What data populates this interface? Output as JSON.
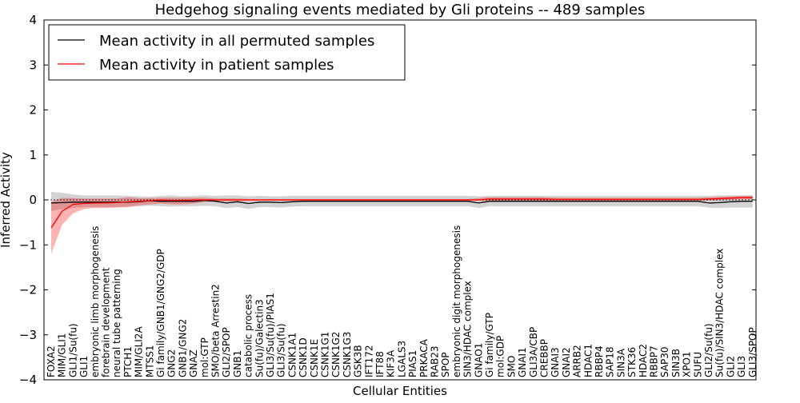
{
  "chart_data": {
    "type": "line",
    "title": "Hedgehog signaling events mediated by Gli proteins -- 489 samples",
    "xlabel": "Cellular Entities",
    "ylabel": "Inferred Activity",
    "ylim": [
      -4,
      4
    ],
    "yticks": [
      4,
      3,
      2,
      1,
      0,
      -1,
      -2,
      -3,
      -4
    ],
    "ytick_labels": [
      "4",
      "3",
      "2",
      "1",
      "0",
      "−1",
      "−2",
      "−3",
      "−4"
    ],
    "legend_position": "top-left",
    "categories": [
      "FOXA2",
      "MIM/GLI1",
      "GLI1/Su(fu)",
      "GLI1",
      "embryonic limb morphogenesis",
      "forebrain development",
      "neural tube patterning",
      "PTCH1",
      "MIM/GLI2A",
      "MTSS1",
      "Gi family/GNB1/GNG2/GDP",
      "GNG2",
      "GNB1/GNG2",
      "GNAZ",
      "mol:GTP",
      "SMO/beta Arrestin2",
      "GLI2/SPOP",
      "GNB1",
      "catabolic process",
      "Su(fu)/Galectin3",
      "GLI3/Su(fu)/PIAS1",
      "GLI3/Su(fu)",
      "CSNK1A1",
      "CSNK1D",
      "CSNK1E",
      "CSNK1G1",
      "CSNK1G2",
      "CSNK1G3",
      "GSK3B",
      "IFT172",
      "IFT88",
      "KIF3A",
      "LGALS3",
      "PIAS1",
      "PRKACA",
      "RAB23",
      "SPOP",
      "embryonic digit morphogenesis",
      "SIN3/HDAC complex",
      "GNAO1",
      "Gi family/GTP",
      "mol:GDP",
      "SMO",
      "GNAI1",
      "GLI3A/CBP",
      "CREBBP",
      "GNAI3",
      "GNAI2",
      "ARRB2",
      "HDAC1",
      "RBBP4",
      "SAP18",
      "SIN3A",
      "STK36",
      "HDAC2",
      "RBBP7",
      "SAP30",
      "SIN3B",
      "XPO1",
      "SUFU",
      "GLI2/Su(fu)",
      "Su(fu)/SIN3/HDAC complex",
      "GLI2",
      "GLI3",
      "GLI3/SPOP"
    ],
    "series": [
      {
        "name": "Mean activity in all permuted samples",
        "color": "#000000",
        "values": [
          -0.07,
          -0.06,
          -0.05,
          -0.05,
          -0.05,
          -0.05,
          -0.05,
          -0.05,
          -0.04,
          -0.02,
          -0.03,
          -0.03,
          -0.03,
          -0.03,
          -0.01,
          -0.03,
          -0.07,
          -0.04,
          -0.08,
          -0.05,
          -0.05,
          -0.06,
          -0.04,
          -0.03,
          -0.03,
          -0.03,
          -0.03,
          -0.03,
          -0.03,
          -0.03,
          -0.03,
          -0.03,
          -0.03,
          -0.03,
          -0.03,
          -0.03,
          -0.03,
          -0.03,
          -0.03,
          -0.07,
          -0.03,
          -0.03,
          -0.03,
          -0.03,
          -0.03,
          -0.03,
          -0.03,
          -0.03,
          -0.03,
          -0.03,
          -0.03,
          -0.03,
          -0.03,
          -0.03,
          -0.03,
          -0.03,
          -0.03,
          -0.03,
          -0.03,
          -0.03,
          -0.07,
          -0.06,
          -0.04,
          -0.03,
          -0.03
        ],
        "band": {
          "upper": [
            0.18,
            0.16,
            0.12,
            0.1,
            0.1,
            0.1,
            0.1,
            0.09,
            0.08,
            0.07,
            0.09,
            0.1,
            0.08,
            0.09,
            0.1,
            0.09,
            0.1,
            0.1,
            0.08,
            0.09,
            0.08,
            0.08,
            0.09,
            0.09,
            0.09,
            0.09,
            0.09,
            0.09,
            0.09,
            0.09,
            0.09,
            0.09,
            0.09,
            0.09,
            0.09,
            0.09,
            0.09,
            0.09,
            0.09,
            0.08,
            0.09,
            0.09,
            0.09,
            0.09,
            0.09,
            0.09,
            0.09,
            0.09,
            0.09,
            0.09,
            0.09,
            0.09,
            0.09,
            0.09,
            0.09,
            0.09,
            0.09,
            0.09,
            0.09,
            0.09,
            0.09,
            0.1,
            0.1,
            0.1,
            0.1
          ],
          "lower": [
            -0.25,
            -0.2,
            -0.18,
            -0.16,
            -0.16,
            -0.16,
            -0.16,
            -0.15,
            -0.14,
            -0.13,
            -0.14,
            -0.15,
            -0.14,
            -0.14,
            -0.13,
            -0.14,
            -0.18,
            -0.16,
            -0.2,
            -0.16,
            -0.16,
            -0.17,
            -0.15,
            -0.14,
            -0.14,
            -0.14,
            -0.14,
            -0.14,
            -0.14,
            -0.14,
            -0.14,
            -0.14,
            -0.14,
            -0.14,
            -0.14,
            -0.14,
            -0.14,
            -0.14,
            -0.14,
            -0.18,
            -0.14,
            -0.14,
            -0.14,
            -0.14,
            -0.14,
            -0.14,
            -0.14,
            -0.14,
            -0.14,
            -0.14,
            -0.14,
            -0.14,
            -0.14,
            -0.14,
            -0.14,
            -0.14,
            -0.14,
            -0.14,
            -0.14,
            -0.14,
            -0.17,
            -0.18,
            -0.17,
            -0.17,
            -0.17
          ]
        }
      },
      {
        "name": "Mean activity in patient samples",
        "color": "#ff0000",
        "values": [
          -0.62,
          -0.25,
          -0.1,
          -0.08,
          -0.07,
          -0.07,
          -0.06,
          -0.04,
          -0.03,
          -0.02,
          0.0,
          -0.01,
          -0.01,
          0.0,
          0.0,
          0.0,
          0.0,
          0.0,
          0.0,
          0.0,
          0.0,
          0.0,
          0.0,
          0.0,
          0.0,
          0.0,
          0.0,
          0.0,
          0.0,
          0.0,
          0.0,
          0.0,
          0.0,
          0.0,
          0.0,
          0.0,
          0.0,
          0.0,
          0.0,
          0.0,
          0.02,
          0.02,
          0.02,
          0.02,
          0.02,
          0.02,
          0.01,
          0.01,
          0.01,
          0.01,
          0.01,
          0.01,
          0.01,
          0.01,
          0.01,
          0.01,
          0.01,
          0.01,
          0.01,
          0.01,
          0.02,
          0.03,
          0.04,
          0.05,
          0.05
        ],
        "band": {
          "upper": [
            -0.05,
            0.05,
            0.04,
            0.03,
            0.03,
            0.03,
            0.03,
            0.06,
            0.04,
            0.04,
            0.05,
            0.05,
            0.05,
            0.05,
            0.05,
            0.03,
            0.03,
            0.03,
            0.02,
            0.02,
            0.02,
            0.02,
            0.02,
            0.02,
            0.02,
            0.02,
            0.02,
            0.02,
            0.02,
            0.02,
            0.02,
            0.02,
            0.02,
            0.02,
            0.02,
            0.02,
            0.02,
            0.02,
            0.02,
            0.04,
            0.06,
            0.06,
            0.06,
            0.06,
            0.06,
            0.06,
            0.05,
            0.05,
            0.05,
            0.05,
            0.05,
            0.05,
            0.05,
            0.05,
            0.05,
            0.05,
            0.05,
            0.05,
            0.05,
            0.05,
            0.06,
            0.07,
            0.08,
            0.09,
            0.09
          ],
          "lower": [
            -1.2,
            -0.55,
            -0.3,
            -0.2,
            -0.18,
            -0.18,
            -0.17,
            -0.16,
            -0.12,
            -0.1,
            -0.08,
            -0.1,
            -0.1,
            -0.08,
            -0.05,
            -0.03,
            -0.03,
            -0.03,
            -0.02,
            -0.02,
            -0.02,
            -0.02,
            -0.02,
            -0.02,
            -0.02,
            -0.02,
            -0.02,
            -0.02,
            -0.02,
            -0.02,
            -0.02,
            -0.02,
            -0.02,
            -0.02,
            -0.02,
            -0.02,
            -0.02,
            -0.02,
            -0.02,
            -0.02,
            -0.02,
            -0.02,
            -0.02,
            -0.02,
            -0.02,
            -0.02,
            -0.02,
            -0.02,
            -0.02,
            -0.02,
            -0.02,
            -0.02,
            -0.02,
            -0.02,
            -0.02,
            -0.02,
            -0.02,
            -0.02,
            -0.02,
            -0.02,
            -0.01,
            -0.01,
            0.0,
            0.01,
            0.01
          ]
        }
      }
    ]
  }
}
